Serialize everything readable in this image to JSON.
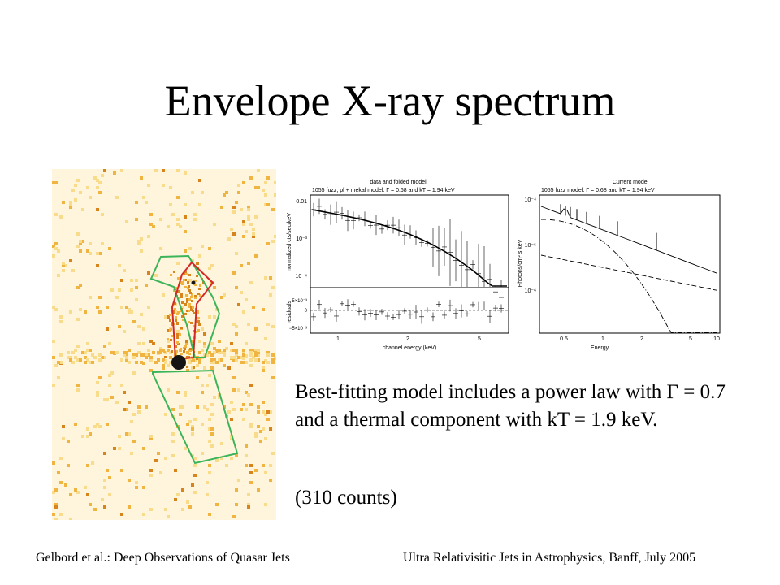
{
  "slide": {
    "title": "Envelope X-ray spectrum",
    "body_text": "Best-fitting model includes a power law with Γ = 0.7 and a thermal component with kT = 1.9 keV.",
    "counts_text": "(310 counts)",
    "footer_left": "Gelbord et al.: Deep Observations of Quasar Jets",
    "footer_right": "Ultra Relativisitic Jets in Astrophysics, Banff, July 2005"
  },
  "plot_left": {
    "header": "data and folded model",
    "subtitle": "1055 fuzz, pl + mekal model: Γ = 0.68 and kT = 1.94 keV",
    "ylabel_top": "normalized cts/sec/keV",
    "ylabel_bottom": "residuals",
    "xlabel": "channel energy (keV)",
    "y_ticks_top": [
      "0.01",
      "10⁻³",
      "10⁻⁴"
    ],
    "y_ticks_bottom": [
      "5×10⁻³",
      "0",
      "−5×10⁻³"
    ],
    "x_ticks": [
      "1",
      "2",
      "5"
    ]
  },
  "plot_right": {
    "header": "Current model",
    "subtitle": "1055 fuzz model: Γ = 0.68 and kT = 1.94 keV",
    "ylabel": "Photons/cm² s keV",
    "xlabel": "Energy",
    "y_ticks": [
      "10⁻⁴",
      "10⁻⁵",
      "10⁻⁶"
    ],
    "x_ticks": [
      "0.5",
      "1",
      "2",
      "5",
      "10"
    ]
  },
  "colors": {
    "image_background": "#fff5dc",
    "image_pixel_light": "#f8dc8c",
    "image_pixel_mid": "#f0b440",
    "image_pixel_dark": "#d8841c",
    "region_green": "#3cb45a",
    "region_red": "#d22828"
  }
}
